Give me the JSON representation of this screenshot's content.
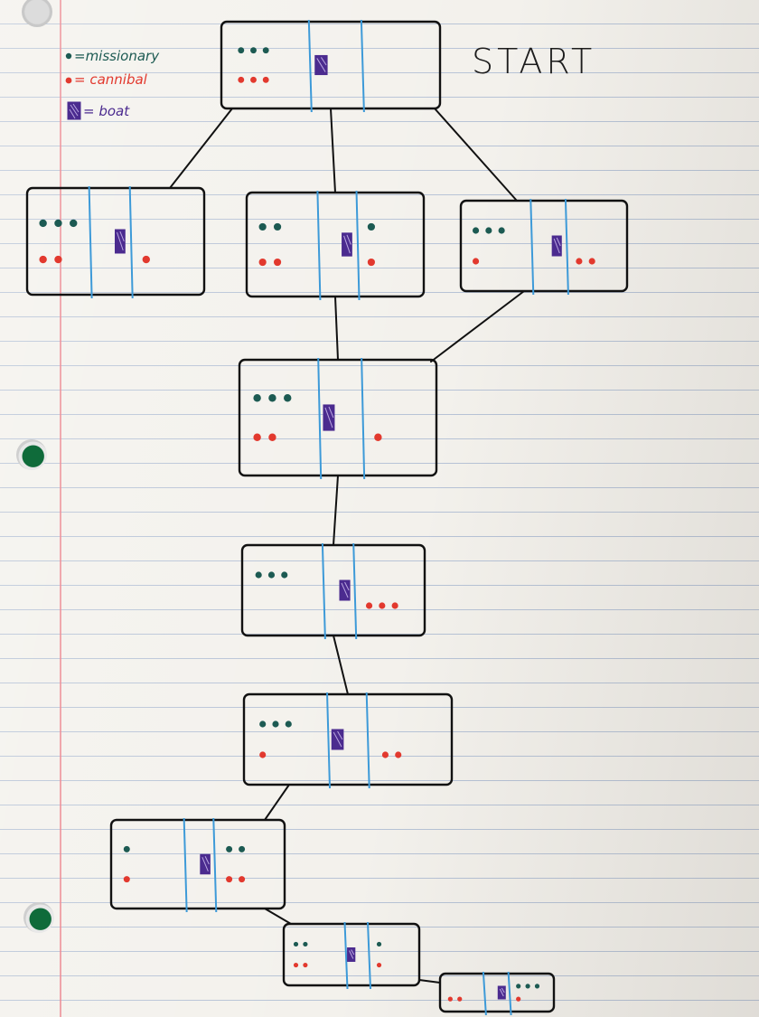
{
  "title": "START",
  "legend": {
    "missionary": "=missionary",
    "cannibal": "= cannibal",
    "boat": "= boat"
  },
  "colors": {
    "missionary": "#1c5a52",
    "cannibal": "#e2392e",
    "boat": "#4b2b8f",
    "river": "#3d9ad8",
    "ink": "#111111"
  },
  "nodes": [
    {
      "id": "start",
      "missionaries_left": 3,
      "cannibals_left": 3,
      "boat": "left",
      "missionaries_right": 0,
      "cannibals_right": 0
    },
    {
      "id": "s1a",
      "missionaries_left": 3,
      "cannibals_left": 2,
      "boat": "right",
      "missionaries_right": 0,
      "cannibals_right": 1
    },
    {
      "id": "s1b",
      "missionaries_left": 2,
      "cannibals_left": 2,
      "boat": "right",
      "missionaries_right": 1,
      "cannibals_right": 1
    },
    {
      "id": "s1c",
      "missionaries_left": 3,
      "cannibals_left": 1,
      "boat": "right",
      "missionaries_right": 0,
      "cannibals_right": 2
    },
    {
      "id": "s2",
      "missionaries_left": 3,
      "cannibals_left": 2,
      "boat": "left",
      "missionaries_right": 0,
      "cannibals_right": 1
    },
    {
      "id": "s3",
      "missionaries_left": 3,
      "cannibals_left": 0,
      "boat": "right",
      "missionaries_right": 0,
      "cannibals_right": 3
    },
    {
      "id": "s4",
      "missionaries_left": 3,
      "cannibals_left": 1,
      "boat": "left",
      "missionaries_right": 0,
      "cannibals_right": 2
    },
    {
      "id": "s5",
      "missionaries_left": 1,
      "cannibals_left": 1,
      "boat": "right",
      "missionaries_right": 2,
      "cannibals_right": 2
    },
    {
      "id": "s6",
      "missionaries_left": 2,
      "cannibals_left": 2,
      "boat": "left",
      "missionaries_right": 1,
      "cannibals_right": 1
    },
    {
      "id": "s7",
      "missionaries_left": 0,
      "cannibals_left": 2,
      "boat": "right",
      "missionaries_right": 3,
      "cannibals_right": 1
    }
  ],
  "edges": [
    [
      "start",
      "s1a"
    ],
    [
      "start",
      "s1b"
    ],
    [
      "start",
      "s1c"
    ],
    [
      "s1b",
      "s2"
    ],
    [
      "s1c",
      "s2"
    ],
    [
      "s2",
      "s3"
    ],
    [
      "s3",
      "s4"
    ],
    [
      "s4",
      "s5"
    ],
    [
      "s5",
      "s6"
    ],
    [
      "s6",
      "s7"
    ]
  ]
}
